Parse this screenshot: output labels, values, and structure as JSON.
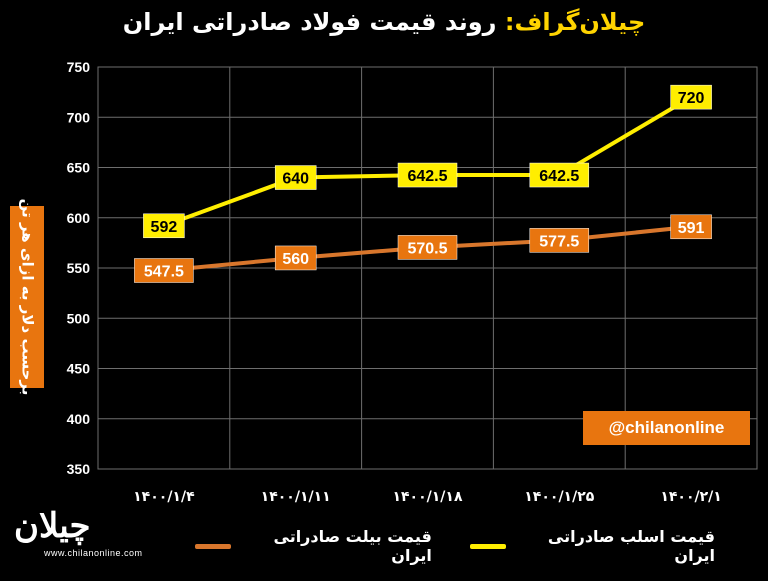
{
  "title": {
    "brand": "چیلان‌گراف:",
    "main": "روند قیمت فولاد صادراتی ایران"
  },
  "watermark": {
    "handle": "@chilanonline",
    "url": "www.chilanonline.com",
    "logo_text": "چیلان"
  },
  "colors": {
    "background": "#000000",
    "slab": "#ffee00",
    "billet": "#e8750f",
    "grid": "#6e6e6e"
  },
  "chart_data": {
    "type": "line",
    "ylabel": "برحسب دلار به ازای هر تن",
    "xlabel": "",
    "categories": [
      "۱۴۰۰/۱/۴",
      "۱۴۰۰/۱/۱۱",
      "۱۴۰۰/۱/۱۸",
      "۱۴۰۰/۱/۲۵",
      "۱۴۰۰/۲/۱"
    ],
    "ylim": [
      350,
      750
    ],
    "yticks": [
      350,
      400,
      450,
      500,
      550,
      600,
      650,
      700,
      750
    ],
    "grid": true,
    "legend": "bottom",
    "series": [
      {
        "name": "قیمت اسلب صادراتی ایران",
        "values": [
          592,
          640,
          642.5,
          642.5,
          720
        ],
        "labels": [
          "592",
          "640",
          "642.5",
          "642.5",
          "720"
        ],
        "color": "#ffee00",
        "label_bg": "#ffee00",
        "label_fg": "#000000"
      },
      {
        "name": "قیمت بیلت صادراتی ایران",
        "values": [
          547.5,
          560,
          570.5,
          577.5,
          591
        ],
        "labels": [
          "547.5",
          "560",
          "570.5",
          "577.5",
          "591"
        ],
        "color": "#d8762c",
        "label_bg": "#e8750f",
        "label_fg": "#ffffff"
      }
    ]
  }
}
